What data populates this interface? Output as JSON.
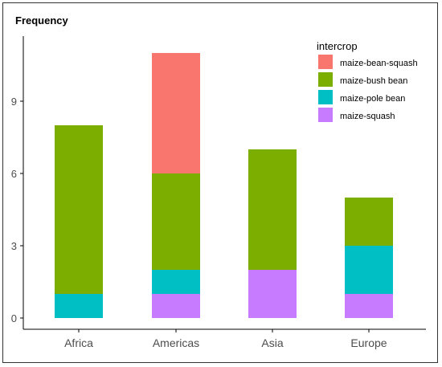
{
  "chart_data": {
    "type": "bar",
    "stacked": true,
    "ylabel": "Frequency",
    "xlabel": "",
    "title": "",
    "categories": [
      "Africa",
      "Americas",
      "Asia",
      "Europe"
    ],
    "ylim": [
      0,
      11
    ],
    "yticks": [
      0,
      3,
      6,
      9
    ],
    "grid": false,
    "legend": {
      "title": "intercrop",
      "placement": "top-right",
      "entries": [
        "maize-bean-squash",
        "maize-bush bean",
        "maize-pole bean",
        "maize-squash"
      ]
    },
    "series": [
      {
        "name": "maize-squash",
        "color": "#C77CFF",
        "values": [
          0,
          1,
          2,
          1
        ]
      },
      {
        "name": "maize-pole bean",
        "color": "#00BFC4",
        "values": [
          1,
          1,
          0,
          2
        ]
      },
      {
        "name": "maize-bush bean",
        "color": "#7CAE00",
        "values": [
          7,
          4,
          5,
          2
        ]
      },
      {
        "name": "maize-bean-squash",
        "color": "#F8766D",
        "values": [
          0,
          5,
          0,
          0
        ]
      }
    ]
  }
}
